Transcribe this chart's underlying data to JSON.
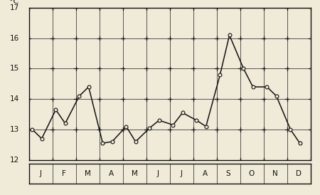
{
  "ylabel": "°C",
  "ylim": [
    12,
    17
  ],
  "yticks": [
    12,
    13,
    14,
    15,
    16,
    17
  ],
  "months": [
    "J",
    "F",
    "M",
    "A",
    "M",
    "J",
    "J",
    "A",
    "S",
    "O",
    "N",
    "D"
  ],
  "background_color": "#f0ead8",
  "line_color": "#111111",
  "marker_facecolor": "#f0ead8",
  "marker_edgecolor": "#111111",
  "x_values": [
    0.15,
    0.55,
    1.15,
    1.55,
    2.15,
    2.55,
    3.15,
    3.55,
    4.15,
    4.55,
    5.15,
    5.55,
    6.15,
    6.55,
    7.15,
    7.55,
    8.15,
    8.55,
    9.15,
    9.55,
    10.15,
    10.55,
    11.15,
    11.55
  ],
  "y_values": [
    13.0,
    12.7,
    13.65,
    13.2,
    14.1,
    14.4,
    12.55,
    12.6,
    13.1,
    12.6,
    13.05,
    13.3,
    13.15,
    13.55,
    13.3,
    13.1,
    14.8,
    16.1,
    15.0,
    14.4,
    14.4,
    14.1,
    13.0,
    12.55
  ],
  "marker_size": 3.5,
  "line_width": 1.1,
  "grid_linewidth": 0.7,
  "grid_color": "#555555",
  "tick_color": "#111111",
  "spine_color": "#111111",
  "label_fontsize": 7.5,
  "ylabel_fontsize": 8,
  "n_months": 12
}
